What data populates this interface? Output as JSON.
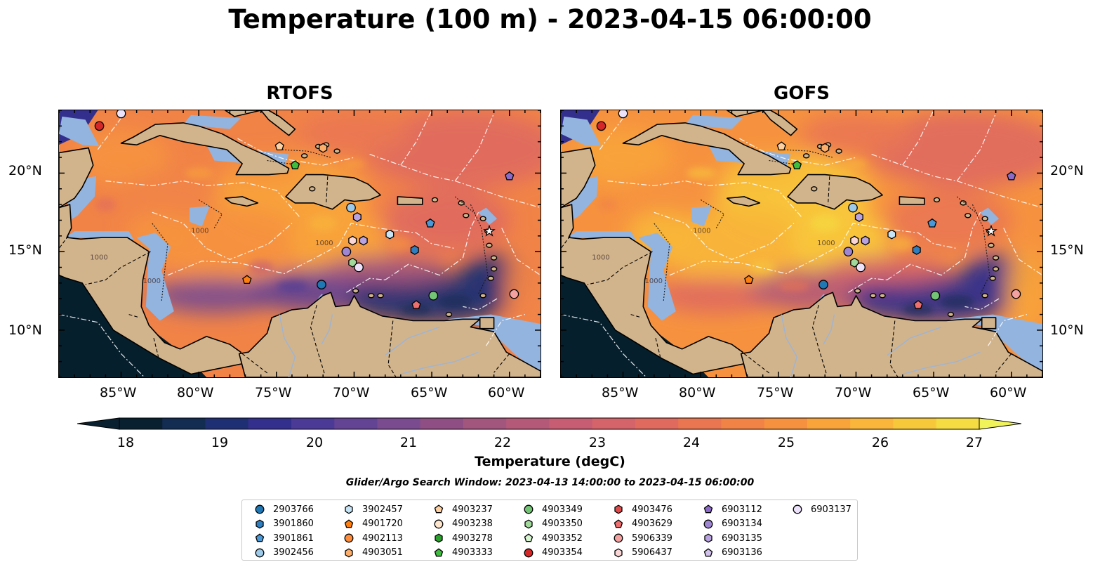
{
  "title": "Temperature (100 m) - 2023-04-15 06:00:00",
  "panels": [
    {
      "title": "RTOFS",
      "field_style": "rtofs"
    },
    {
      "title": "GOFS",
      "field_style": "gofs"
    }
  ],
  "axes": {
    "x_ticks": [
      "85°W",
      "80°W",
      "75°W",
      "70°W",
      "65°W",
      "60°W"
    ],
    "x_tick_values": [
      -85,
      -80,
      -75,
      -70,
      -65,
      -60
    ],
    "y_ticks": [
      "20°N",
      "15°N",
      "10°N"
    ],
    "y_tick_values": [
      20,
      15,
      10
    ],
    "lon_range": [
      -89,
      -58
    ],
    "lat_range": [
      7,
      24
    ]
  },
  "colorbar": {
    "title": "Temperature (degC)",
    "ticks": [
      "18",
      "19",
      "20",
      "21",
      "22",
      "23",
      "24",
      "25",
      "26",
      "27"
    ],
    "range": [
      18,
      27
    ],
    "extend": "both",
    "colors": [
      "#08202f",
      "#122c52",
      "#1f2f74",
      "#332f8c",
      "#4b3a96",
      "#634394",
      "#7a4c8f",
      "#904f84",
      "#a2567e",
      "#b45a78",
      "#c65d72",
      "#d4646a",
      "#e06a5e",
      "#ea7651",
      "#f18347",
      "#f6923f",
      "#f9a43b",
      "#f9b63a",
      "#f8c83b",
      "#f5dc42"
    ]
  },
  "search_window": "Glider/Argo Search Window: 2023-04-13 14:00:00 to 2023-04-15 06:00:00",
  "colors": {
    "land": "#d2b48c",
    "shelf": "#93b4df",
    "deep_cold": "#061f2c",
    "rivers": "#a0b4d0"
  },
  "legend_items": [
    {
      "id": "2903766",
      "marker": "circle",
      "color": "#1f77b4"
    },
    {
      "id": "3901860",
      "marker": "hexagon",
      "color": "#2f7fc0"
    },
    {
      "id": "3901861",
      "marker": "pentagon",
      "color": "#4a98d8"
    },
    {
      "id": "3902456",
      "marker": "circle",
      "color": "#9ecae9"
    },
    {
      "id": "3902457",
      "marker": "hexagon",
      "color": "#c6e4f5"
    },
    {
      "id": "4901720",
      "marker": "pentagon",
      "color": "#ff7f0e"
    },
    {
      "id": "4902113",
      "marker": "circle",
      "color": "#fd8d3c"
    },
    {
      "id": "4903051",
      "marker": "hexagon",
      "color": "#fdae6b"
    },
    {
      "id": "4903237",
      "marker": "pentagon",
      "color": "#fdd0a2"
    },
    {
      "id": "4903238",
      "marker": "circle",
      "color": "#fee6ce"
    },
    {
      "id": "4903278",
      "marker": "hexagon",
      "color": "#2ca02c"
    },
    {
      "id": "4903333",
      "marker": "pentagon",
      "color": "#3ebd3e"
    },
    {
      "id": "4903349",
      "marker": "circle",
      "color": "#74c476"
    },
    {
      "id": "4903350",
      "marker": "hexagon",
      "color": "#a1d99b"
    },
    {
      "id": "4903352",
      "marker": "pentagon",
      "color": "#d6f5d0"
    },
    {
      "id": "4903354",
      "marker": "circle",
      "color": "#d62728"
    },
    {
      "id": "4903476",
      "marker": "hexagon",
      "color": "#de4b4b"
    },
    {
      "id": "4903629",
      "marker": "pentagon",
      "color": "#ef6f6f"
    },
    {
      "id": "5906339",
      "marker": "circle",
      "color": "#f4a1a1"
    },
    {
      "id": "5906437",
      "marker": "hexagon",
      "color": "#fbd6d6"
    },
    {
      "id": "6903112",
      "marker": "pentagon",
      "color": "#8c6bc8"
    },
    {
      "id": "6903134",
      "marker": "circle",
      "color": "#9e86d2"
    },
    {
      "id": "6903135",
      "marker": "hexagon",
      "color": "#b8a3e0"
    },
    {
      "id": "6903136",
      "marker": "pentagon",
      "color": "#d2c2ee"
    },
    {
      "id": "6903137",
      "marker": "circle",
      "color": "#ece2fa"
    }
  ],
  "float_positions": [
    {
      "id": "4903354",
      "lon": -86.4,
      "lat": 23.0
    },
    {
      "id": "6903137",
      "lon": -85.0,
      "lat": 23.8
    },
    {
      "id": "4903237",
      "lon": -74.8,
      "lat": 21.7
    },
    {
      "id": "4903051",
      "lon": -72.0,
      "lat": 21.6
    },
    {
      "id": "4903333",
      "lon": -73.8,
      "lat": 20.5
    },
    {
      "id": "6903112",
      "lon": -60.0,
      "lat": 19.8
    },
    {
      "id": "3902456",
      "lon": -70.2,
      "lat": 17.8
    },
    {
      "id": "6903135",
      "lon": -69.8,
      "lat": 17.2
    },
    {
      "id": "3901861",
      "lon": -65.1,
      "lat": 16.8
    },
    {
      "id": "3902457",
      "lon": -67.7,
      "lat": 16.1
    },
    {
      "id": "5906437",
      "lon": -70.1,
      "lat": 15.7
    },
    {
      "id": "6903135",
      "lon": -69.4,
      "lat": 15.7
    },
    {
      "id": "3901860",
      "lon": -66.1,
      "lat": 15.1
    },
    {
      "id": "6903134",
      "lon": -70.5,
      "lat": 15.0
    },
    {
      "id": "4903350",
      "lon": -70.1,
      "lat": 14.3
    },
    {
      "id": "6903137",
      "lon": -69.7,
      "lat": 14.0
    },
    {
      "id": "4901720",
      "lon": -76.9,
      "lat": 13.2
    },
    {
      "id": "2903766",
      "lon": -72.1,
      "lat": 12.9
    },
    {
      "id": "4903349",
      "lon": -64.9,
      "lat": 12.2
    },
    {
      "id": "5906339",
      "lon": -59.7,
      "lat": 12.3
    },
    {
      "id": "4903629",
      "lon": -66.0,
      "lat": 11.6
    }
  ],
  "contour_labels": [
    "1000",
    "1000",
    "1000",
    "1000"
  ]
}
